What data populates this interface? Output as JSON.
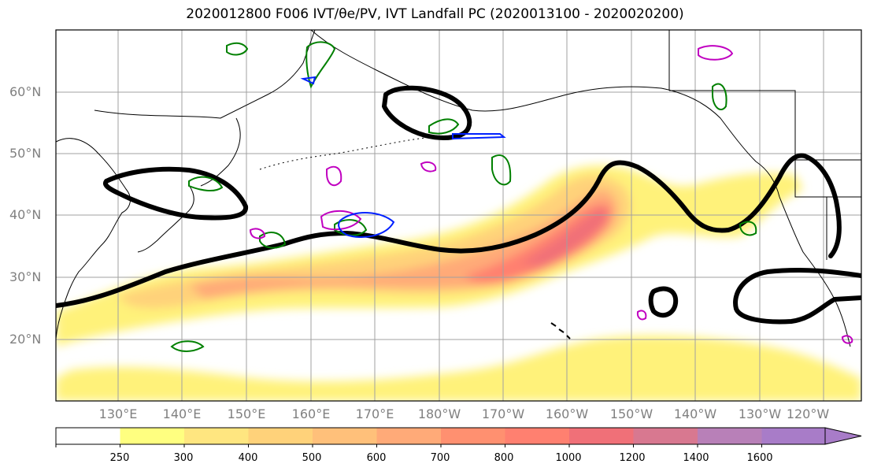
{
  "title": "2020012800 F006 IVT/θe/PV, IVT Landfall PC (2020013100 - 2020020200)",
  "map": {
    "lat_labels": [
      "60°N",
      "50°N",
      "40°N",
      "30°N",
      "20°N"
    ],
    "lon_labels": [
      "130°E",
      "140°E",
      "150°E",
      "160°E",
      "170°E",
      "180°W",
      "170°W",
      "160°W",
      "150°W",
      "140°W",
      "130°W",
      "120°W"
    ],
    "colors": {
      "land_outline": "#000000",
      "gridline": "#a0a0a0",
      "landfall_pc_contour": "#000000",
      "theta_e_contour": "#008000",
      "pv_contour_magenta": "#c000c0",
      "pv_contour_blue": "#0020ff"
    }
  },
  "colorbar": {
    "tick_labels": [
      "250",
      "300",
      "400",
      "500",
      "600",
      "700",
      "800",
      "1000",
      "1200",
      "1400",
      "1600"
    ],
    "colors": [
      "#ffffff",
      "#ffff80",
      "#ffe680",
      "#ffd27a",
      "#ffc07a",
      "#ffaa78",
      "#ff9070",
      "#ff8070",
      "#f07078",
      "#d87890",
      "#b880b8",
      "#a87cc8"
    ]
  }
}
